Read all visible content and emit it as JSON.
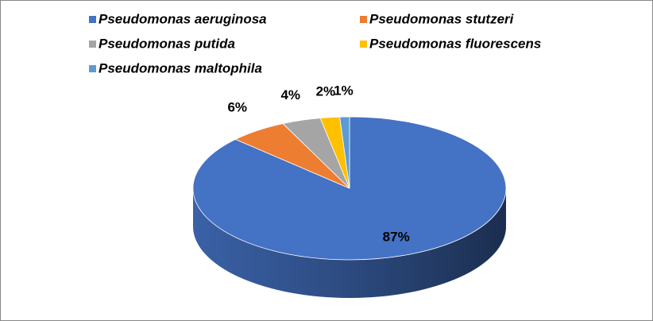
{
  "chart_data": {
    "type": "pie3d",
    "categories": [
      "Pseudomonas aeruginosa",
      "Pseudomonas stutzeri",
      "Pseudomonas putida",
      "Pseudomonas fluorescens",
      "Pseudomonas maltophila"
    ],
    "values": [
      87,
      6,
      4,
      2,
      1
    ],
    "value_labels": [
      "87%",
      "6%",
      "4%",
      "2%",
      "1%"
    ],
    "colors": [
      "#4472c4",
      "#ed7d31",
      "#a5a5a5",
      "#ffc000",
      "#5b9bd5"
    ],
    "legend": "top"
  }
}
